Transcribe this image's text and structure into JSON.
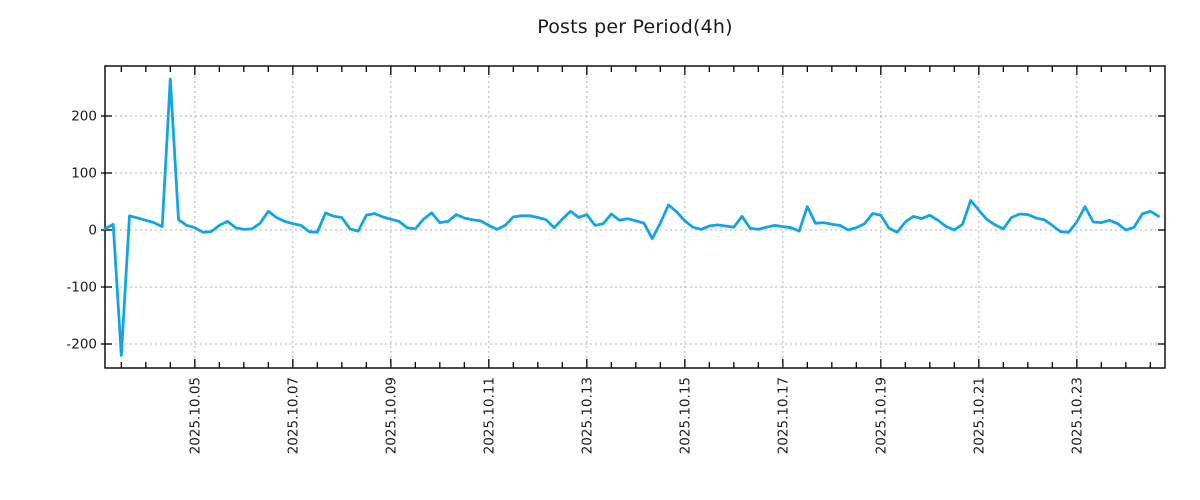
{
  "page": {
    "background": "#ffffff"
  },
  "chart_data": {
    "type": "line",
    "title": "Posts per Period(4h)",
    "legend": "none",
    "grid": true,
    "line_color": "#11a5e8",
    "grid_color": "#b3b3b3",
    "axis_color": "#000000",
    "text_color": "#1a1a1a",
    "x_start": "2025.10.03 04:00",
    "x_interval_hours": 4,
    "x_tick_labels": [
      "2025.10.05",
      "2025.10.07",
      "2025.10.09",
      "2025.10.11",
      "2025.10.13",
      "2025.10.15",
      "2025.10.17",
      "2025.10.19",
      "2025.10.21",
      "2025.10.23"
    ],
    "x_tick_indices": [
      11,
      23,
      35,
      47,
      59,
      71,
      83,
      95,
      107,
      119
    ],
    "y_ticks": [
      200,
      100,
      0,
      -100,
      -200
    ],
    "ylim": [
      -242,
      287
    ],
    "values": [
      2,
      10,
      -220,
      25,
      21,
      17,
      13,
      6,
      265,
      18,
      8,
      4,
      -4,
      -3,
      8,
      15,
      4,
      1,
      2,
      12,
      33,
      22,
      15,
      11,
      8,
      -3,
      -4,
      30,
      24,
      22,
      2,
      -2,
      26,
      29,
      23,
      19,
      15,
      4,
      2,
      19,
      30,
      13,
      15,
      27,
      21,
      18,
      16,
      8,
      1,
      8,
      23,
      25,
      25,
      22,
      18,
      4,
      19,
      33,
      22,
      27,
      8,
      11,
      28,
      17,
      20,
      16,
      12,
      -15,
      12,
      44,
      32,
      16,
      5,
      1,
      7,
      9,
      7,
      5,
      24,
      3,
      1,
      5,
      8,
      6,
      4,
      -2,
      41,
      12,
      13,
      10,
      8,
      0,
      4,
      11,
      29,
      26,
      3,
      -4,
      14,
      24,
      20,
      26,
      17,
      6,
      0,
      10,
      52,
      35,
      18,
      9,
      2,
      22,
      28,
      27,
      21,
      18,
      8,
      -3,
      -4,
      14,
      41,
      14,
      13,
      17,
      11,
      0,
      5,
      28,
      33,
      24
    ]
  }
}
